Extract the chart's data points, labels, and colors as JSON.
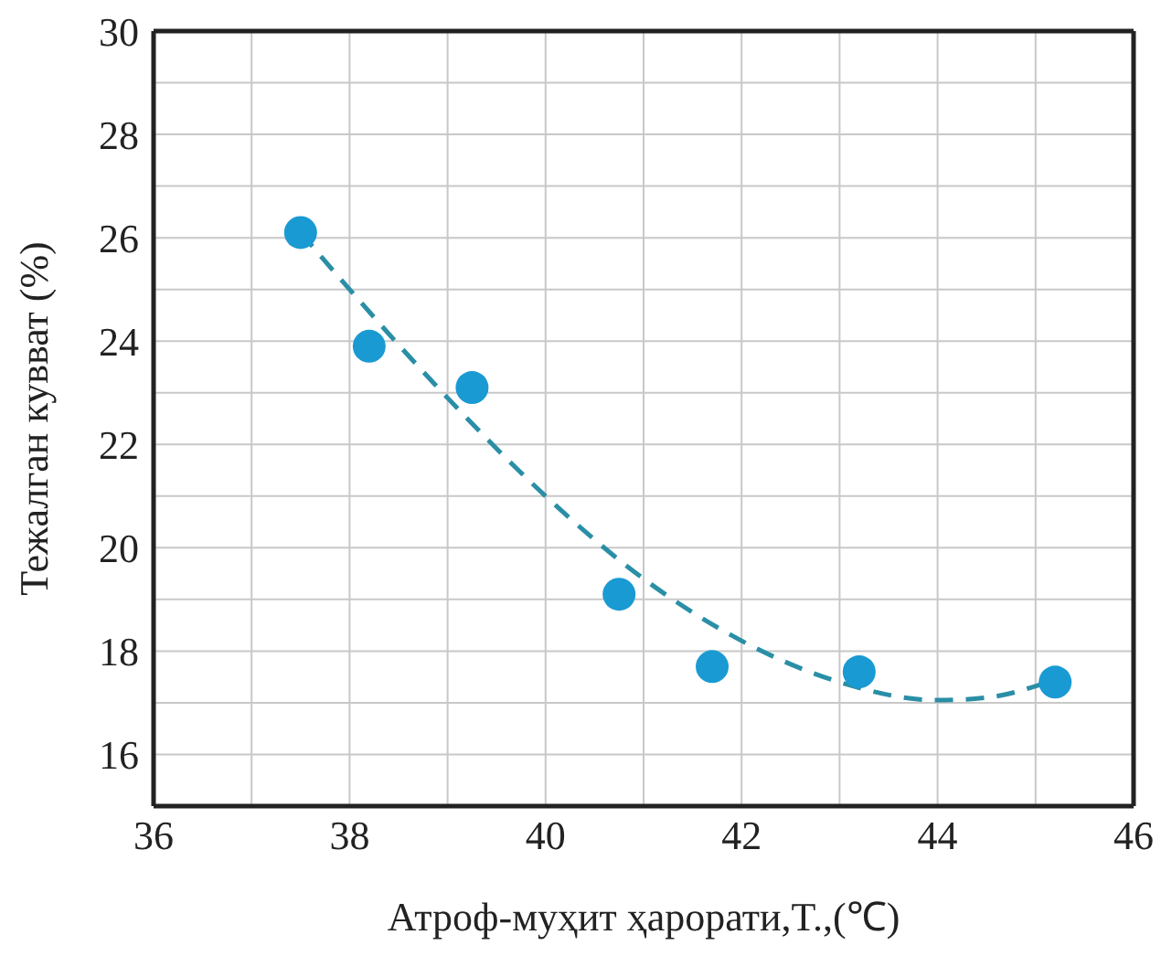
{
  "chart_data": {
    "type": "scatter",
    "xlabel": "Атроф-муҳит ҳарорати,T.,(℃)",
    "ylabel": "Тежалган кувват (%)",
    "xlim": [
      36,
      46
    ],
    "ylim": [
      15,
      30
    ],
    "xticks": [
      36,
      {
        "value": 37,
        "label": null
      },
      38,
      {
        "value": 39,
        "label": null
      },
      40,
      {
        "value": 41,
        "label": null
      },
      42,
      {
        "value": 43,
        "label": null
      },
      44,
      {
        "value": 45,
        "label": null
      },
      46
    ],
    "yticks": [
      {
        "value": 15,
        "label": null
      },
      16,
      {
        "value": 17,
        "label": null
      },
      18,
      {
        "value": 19,
        "label": null
      },
      20,
      {
        "value": 21,
        "label": null
      },
      22,
      {
        "value": 23,
        "label": null
      },
      24,
      {
        "value": 25,
        "label": null
      },
      26,
      {
        "value": 27,
        "label": null
      },
      28,
      {
        "value": 29,
        "label": null
      },
      30
    ],
    "grid": true,
    "series": [
      {
        "type": "line",
        "color": "#2a8fa6",
        "line_style": "dashed",
        "marker": "none",
        "x": [
          37.5,
          38,
          39,
          40,
          41,
          42,
          43,
          44,
          44.5,
          45.2
        ],
        "values": [
          26.1,
          25.0,
          22.9,
          21.0,
          19.4,
          18.2,
          17.4,
          17.05,
          17.1,
          17.45
        ]
      },
      {
        "color": "#1a9ad2",
        "marker": "circle",
        "x": [
          37.5,
          38.2,
          39.25,
          40.75,
          41.7,
          43.2,
          45.2
        ],
        "values": [
          26.1,
          23.9,
          23.1,
          19.1,
          17.7,
          17.6,
          17.4
        ]
      }
    ]
  }
}
